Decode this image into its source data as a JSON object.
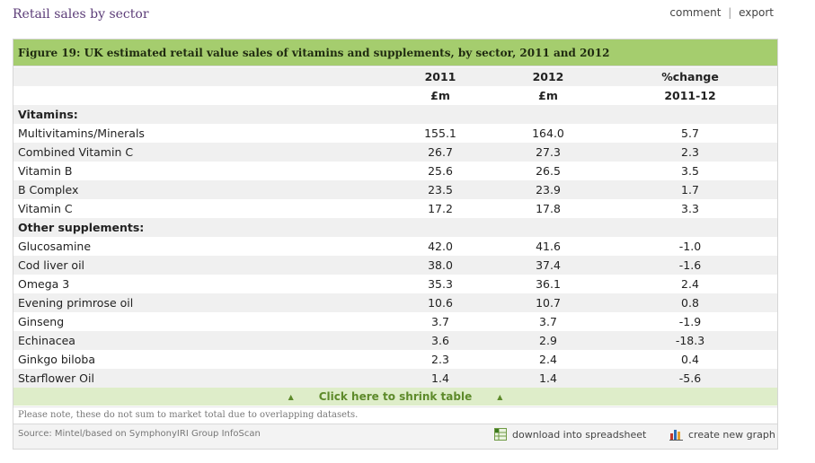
{
  "section_title": "Retail sales by sector",
  "links": {
    "comment": "comment",
    "separator": "|",
    "export": "export"
  },
  "figure_title": "Figure 19: UK estimated retail value sales of vitamins and supplements, by sector, 2011 and 2012",
  "header": [
    {
      "label": "",
      "c1": "2011",
      "c2": "2012",
      "c3": "%change"
    },
    {
      "label": "",
      "c1": "£m",
      "c2": "£m",
      "c3": "2011-12"
    }
  ],
  "rows": [
    {
      "label": "Vitamins:",
      "group": true,
      "c1": "",
      "c2": "",
      "c3": ""
    },
    {
      "label": "Multivitamins/Minerals",
      "c1": "155.1",
      "c2": "164.0",
      "c3": "5.7"
    },
    {
      "label": "Combined Vitamin C",
      "c1": "26.7",
      "c2": "27.3",
      "c3": "2.3"
    },
    {
      "label": "Vitamin B",
      "c1": "25.6",
      "c2": "26.5",
      "c3": "3.5"
    },
    {
      "label": "B Complex",
      "c1": "23.5",
      "c2": "23.9",
      "c3": "1.7"
    },
    {
      "label": "Vitamin C",
      "c1": "17.2",
      "c2": "17.8",
      "c3": "3.3"
    },
    {
      "label": "Other supplements:",
      "group": true,
      "c1": "",
      "c2": "",
      "c3": ""
    },
    {
      "label": "Glucosamine",
      "c1": "42.0",
      "c2": "41.6",
      "c3": "-1.0"
    },
    {
      "label": "Cod liver oil",
      "c1": "38.0",
      "c2": "37.4",
      "c3": "-1.6"
    },
    {
      "label": "Omega 3",
      "c1": "35.3",
      "c2": "36.1",
      "c3": "2.4"
    },
    {
      "label": "Evening primrose oil",
      "c1": "10.6",
      "c2": "10.7",
      "c3": "0.8"
    },
    {
      "label": "Ginseng",
      "c1": "3.7",
      "c2": "3.7",
      "c3": "-1.9"
    },
    {
      "label": "Echinacea",
      "c1": "3.6",
      "c2": "2.9",
      "c3": "-18.3"
    },
    {
      "label": "Ginkgo biloba",
      "c1": "2.3",
      "c2": "2.4",
      "c3": "0.4"
    },
    {
      "label": "Starflower Oil",
      "c1": "1.4",
      "c2": "1.4",
      "c3": "-5.6"
    }
  ],
  "shrink_label": "Click here to shrink table",
  "shrink_icon": "triangle-up-icon",
  "note": "Please note, these do not sum to market total due to overlapping datasets.",
  "source": "Source: Mintel/based on SymphonyIRI Group InfoScan",
  "download_label": "download into spreadsheet",
  "create_graph_label": "create new graph",
  "colors": {
    "title_green": "#a5cd6e",
    "shrink_bg": "#deedc9",
    "shrink_text": "#5d8a2a",
    "heading_purple": "#5c3d78"
  }
}
